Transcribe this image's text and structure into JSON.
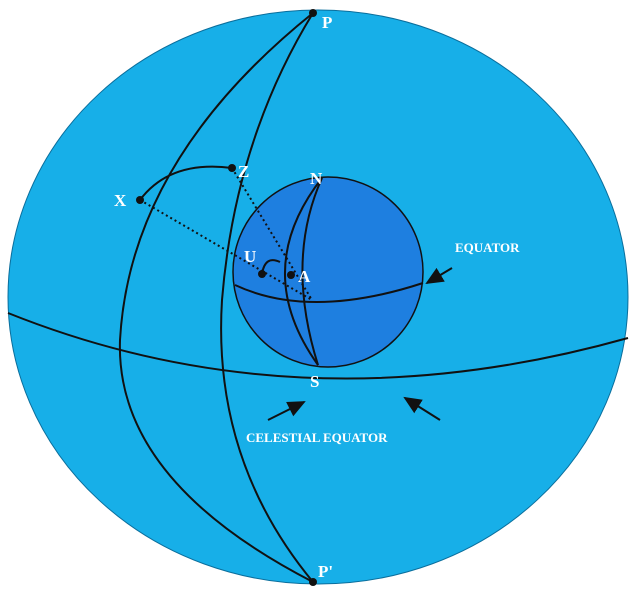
{
  "labels": {
    "p": "P",
    "z": "Z",
    "n": "N",
    "x": "X",
    "u": "U",
    "a": "A",
    "equator": "EQUATOR",
    "s": "S",
    "celestial_equator": "CELESTIAL EQUATOR",
    "p_prime": "P'"
  }
}
